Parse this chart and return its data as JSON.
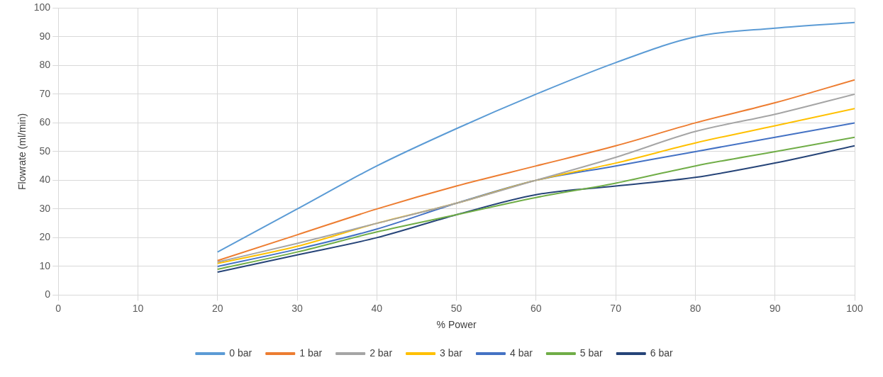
{
  "chart_data": {
    "type": "line",
    "xlabel": "% Power",
    "ylabel": "Flowrate (ml/min)",
    "x": [
      20,
      30,
      40,
      50,
      60,
      70,
      80,
      90,
      100
    ],
    "xlim": [
      0,
      100
    ],
    "xticks": [
      0,
      10,
      20,
      30,
      40,
      50,
      60,
      70,
      80,
      90,
      100
    ],
    "ylim": [
      0,
      100
    ],
    "yticks": [
      0,
      10,
      20,
      30,
      40,
      50,
      60,
      70,
      80,
      90,
      100
    ],
    "grid": true,
    "legend": "bottom",
    "marker": "none",
    "series": [
      {
        "name": "0 bar",
        "color": "#5b9bd5",
        "values": [
          15,
          30,
          45,
          58,
          70,
          81,
          90,
          93,
          95
        ]
      },
      {
        "name": "1 bar",
        "color": "#ed7d31",
        "values": [
          12,
          21,
          30,
          38,
          45,
          52,
          60,
          67,
          75
        ]
      },
      {
        "name": "2 bar",
        "color": "#a5a5a5",
        "values": [
          11.5,
          18,
          25,
          32,
          40,
          48,
          57,
          63,
          70
        ]
      },
      {
        "name": "3 bar",
        "color": "#ffc000",
        "values": [
          11,
          17,
          25,
          32,
          40,
          46,
          53,
          59,
          65
        ]
      },
      {
        "name": "4 bar",
        "color": "#4472c4",
        "values": [
          10,
          16,
          23,
          32,
          40,
          45,
          50,
          55,
          60
        ]
      },
      {
        "name": "5 bar",
        "color": "#70ad47",
        "values": [
          9,
          15,
          22,
          28,
          34,
          39,
          45,
          50,
          55
        ]
      },
      {
        "name": "6 bar",
        "color": "#264478",
        "values": [
          8,
          14,
          20,
          28,
          35,
          38,
          41,
          46,
          52
        ]
      }
    ]
  }
}
